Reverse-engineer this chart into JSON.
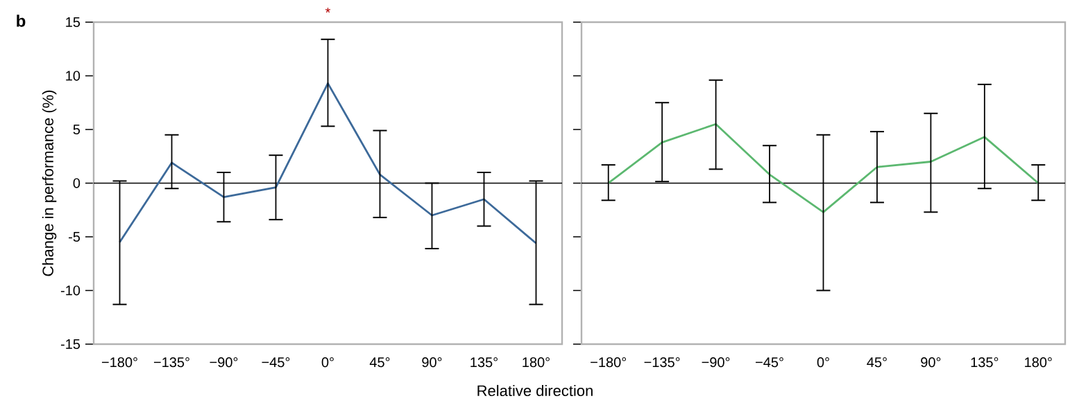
{
  "chart_data": [
    {
      "type": "line",
      "ylabel": "Change in performance (%)",
      "xlabel": "Relative direction",
      "annotations": [
        "b",
        "*"
      ],
      "categories": [
        "−180°",
        "−135°",
        "−90°",
        "−45°",
        "0°",
        "45°",
        "90°",
        "135°",
        "180°"
      ],
      "series": [
        {
          "color": "#3d6a9a",
          "values": [
            -5.5,
            1.9,
            -1.3,
            -0.4,
            9.3,
            0.8,
            -3.0,
            -1.5,
            -5.6
          ],
          "errors": [
            [
              -11.3,
              0.2
            ],
            [
              -0.5,
              4.5
            ],
            [
              -3.6,
              1.0
            ],
            [
              -3.4,
              2.6
            ],
            [
              5.3,
              13.4
            ],
            [
              -3.2,
              4.9
            ],
            [
              -6.1,
              0.0
            ],
            [
              -4.0,
              1.0
            ],
            [
              -11.3,
              0.2
            ]
          ]
        }
      ],
      "ylim": [
        -15,
        15
      ],
      "yticks": [
        -15,
        -10,
        -5,
        0,
        5,
        10,
        15
      ],
      "ref_lines": [
        {
          "axis": "y",
          "value": 0
        }
      ]
    },
    {
      "type": "line",
      "categories": [
        "−180°",
        "−135°",
        "−90°",
        "−45°",
        "0°",
        "45°",
        "90°",
        "135°",
        "180°"
      ],
      "series": [
        {
          "color": "#5cb870",
          "values": [
            0.0,
            3.8,
            5.5,
            0.8,
            -2.7,
            1.5,
            2.0,
            4.3,
            0.0
          ],
          "errors": [
            [
              -1.6,
              1.7
            ],
            [
              0.15,
              7.5
            ],
            [
              1.3,
              9.6
            ],
            [
              -1.8,
              3.5
            ],
            [
              -10.0,
              4.5
            ],
            [
              -1.8,
              4.8
            ],
            [
              -2.7,
              6.5
            ],
            [
              -0.5,
              9.2
            ],
            [
              -1.6,
              1.7
            ]
          ]
        }
      ],
      "ylim": [
        -15,
        15
      ],
      "yticks": [
        -15,
        -10,
        -5,
        0,
        5,
        10,
        15
      ],
      "tick_labels": "x",
      "ref_lines": [
        {
          "axis": "y",
          "value": 0
        }
      ]
    }
  ]
}
